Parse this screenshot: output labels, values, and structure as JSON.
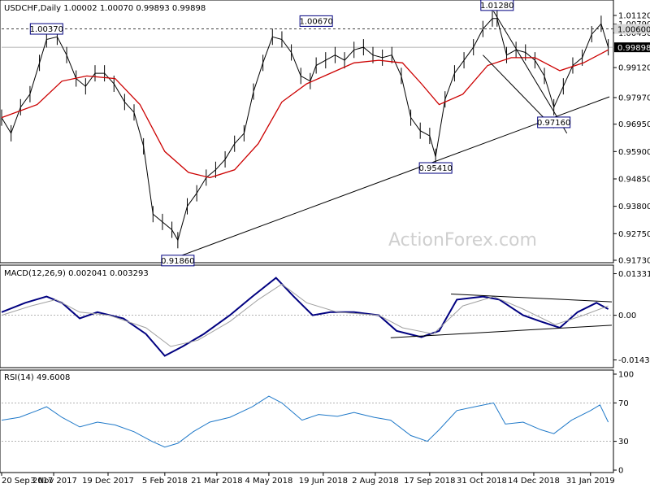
{
  "chart_data": [
    {
      "type": "line",
      "panel": "price",
      "title": "USDCHF,Daily  1.00002 1.00070 0.99893 0.99898",
      "watermark": "ActionForex.com",
      "ylim": [
        0.9173,
        1.014
      ],
      "y_ticks": [
        "1.01120",
        "1.00790",
        "1.00450",
        "0.99120",
        "0.97970",
        "0.96950",
        "0.95900",
        "0.94850",
        "0.93800",
        "0.92750",
        "0.91730"
      ],
      "y_tick_values": [
        1.0112,
        1.0079,
        1.0045,
        0.9912,
        0.9797,
        0.9695,
        0.959,
        0.9485,
        0.938,
        0.9275,
        0.9173
      ],
      "current_price_label": "0.99898",
      "current_price": 0.99898,
      "dashed_level_label": "1.00600",
      "dashed_level": 1.006,
      "x_labels": [
        "20 Sep 2017",
        "3 Nov 2017",
        "19 Dec 2017",
        "5 Feb 2018",
        "21 Mar 2018",
        "4 May 2018",
        "19 Jun 2018",
        "2 Aug 2018",
        "17 Sep 2018",
        "31 Oct 2018",
        "14 Dec 2018",
        "31 Jan 2019"
      ],
      "annotations": [
        {
          "text": "1.00370",
          "x": "28 Oct 2017",
          "value": 1.0037
        },
        {
          "text": "0.91860",
          "x": "16 Feb 2018",
          "value": 0.9186
        },
        {
          "text": "1.00670",
          "x": "13 Jun 2018",
          "value": 1.0067
        },
        {
          "text": "0.95410",
          "x": "22 Sep 2018",
          "value": 0.9541
        },
        {
          "text": "1.01280",
          "x": "13 Nov 2018",
          "value": 1.0128
        },
        {
          "text": "0.97160",
          "x": "31 Dec 2018",
          "value": 0.9716
        }
      ],
      "series": [
        {
          "color": "#000000",
          "style": "bars",
          "points": [
            [
              "20 Sep 2017",
              0.972
            ],
            [
              "28 Sep 2017",
              0.966
            ],
            [
              "6 Oct 2017",
              0.976
            ],
            [
              "14 Oct 2017",
              0.981
            ],
            [
              "22 Oct 2017",
              0.993
            ],
            [
              "28 Oct 2017",
              1.002
            ],
            [
              "6 Nov 2017",
              1.003
            ],
            [
              "14 Nov 2017",
              0.996
            ],
            [
              "22 Nov 2017",
              0.987
            ],
            [
              "30 Nov 2017",
              0.984
            ],
            [
              "8 Dec 2017",
              0.989
            ],
            [
              "16 Dec 2017",
              0.989
            ],
            [
              "24 Dec 2017",
              0.985
            ],
            [
              "2 Jan 2018",
              0.978
            ],
            [
              "10 Jan 2018",
              0.974
            ],
            [
              "18 Jan 2018",
              0.961
            ],
            [
              "26 Jan 2018",
              0.935
            ],
            [
              "3 Feb 2018",
              0.932
            ],
            [
              "11 Feb 2018",
              0.929
            ],
            [
              "16 Feb 2018",
              0.925
            ],
            [
              "24 Feb 2018",
              0.938
            ],
            [
              "4 Mar 2018",
              0.943
            ],
            [
              "12 Mar 2018",
              0.949
            ],
            [
              "20 Mar 2018",
              0.952
            ],
            [
              "28 Mar 2018",
              0.956
            ],
            [
              "5 Apr 2018",
              0.962
            ],
            [
              "13 Apr 2018",
              0.966
            ],
            [
              "21 Apr 2018",
              0.982
            ],
            [
              "29 Apr 2018",
              0.993
            ],
            [
              "7 May 2018",
              1.003
            ],
            [
              "15 May 2018",
              1.002
            ],
            [
              "23 May 2018",
              0.997
            ],
            [
              "31 May 2018",
              0.988
            ],
            [
              "8 Jun 2018",
              0.986
            ],
            [
              "13 Jun 2018",
              0.992
            ],
            [
              "21 Jun 2018",
              0.994
            ],
            [
              "29 Jun 2018",
              0.996
            ],
            [
              "7 Jul 2018",
              0.994
            ],
            [
              "15 Jul 2018",
              0.998
            ],
            [
              "23 Jul 2018",
              0.999
            ],
            [
              "31 Jul 2018",
              0.996
            ],
            [
              "8 Aug 2018",
              0.995
            ],
            [
              "16 Aug 2018",
              0.996
            ],
            [
              "24 Aug 2018",
              0.988
            ],
            [
              "1 Sep 2018",
              0.972
            ],
            [
              "9 Sep 2018",
              0.967
            ],
            [
              "17 Sep 2018",
              0.965
            ],
            [
              "22 Sep 2018",
              0.957
            ],
            [
              "30 Sep 2018",
              0.979
            ],
            [
              "8 Oct 2018",
              0.989
            ],
            [
              "16 Oct 2018",
              0.994
            ],
            [
              "24 Oct 2018",
              0.999
            ],
            [
              "1 Nov 2018",
              1.006
            ],
            [
              "9 Nov 2018",
              1.01
            ],
            [
              "13 Nov 2018",
              1.01
            ],
            [
              "21 Nov 2018",
              0.996
            ],
            [
              "29 Nov 2018",
              0.998
            ],
            [
              "7 Dec 2018",
              0.997
            ],
            [
              "15 Dec 2018",
              0.994
            ],
            [
              "23 Dec 2018",
              0.988
            ],
            [
              "31 Dec 2018",
              0.976
            ],
            [
              "8 Jan 2019",
              0.984
            ],
            [
              "16 Jan 2019",
              0.992
            ],
            [
              "24 Jan 2019",
              0.995
            ],
            [
              "1 Feb 2019",
              1.004
            ],
            [
              "9 Feb 2019",
              1.008
            ],
            [
              "15 Feb 2019",
              0.999
            ]
          ]
        },
        {
          "color": "#cc0000",
          "style": "line",
          "points": [
            [
              "20 Sep 2017",
              0.972
            ],
            [
              "20 Oct 2017",
              0.977
            ],
            [
              "10 Nov 2017",
              0.986
            ],
            [
              "1 Dec 2017",
              0.988
            ],
            [
              "25 Dec 2017",
              0.987
            ],
            [
              "15 Jan 2018",
              0.977
            ],
            [
              "5 Feb 2018",
              0.959
            ],
            [
              "25 Feb 2018",
              0.951
            ],
            [
              "15 Mar 2018",
              0.949
            ],
            [
              "5 Apr 2018",
              0.952
            ],
            [
              "25 Apr 2018",
              0.962
            ],
            [
              "15 May 2018",
              0.978
            ],
            [
              "5 Jun 2018",
              0.985
            ],
            [
              "25 Jun 2018",
              0.989
            ],
            [
              "15 Jul 2018",
              0.993
            ],
            [
              "5 Aug 2018",
              0.994
            ],
            [
              "25 Aug 2018",
              0.993
            ],
            [
              "10 Sep 2018",
              0.985
            ],
            [
              "25 Sep 2018",
              0.977
            ],
            [
              "15 Oct 2018",
              0.981
            ],
            [
              "5 Nov 2018",
              0.992
            ],
            [
              "25 Nov 2018",
              0.995
            ],
            [
              "15 Dec 2018",
              0.995
            ],
            [
              "5 Jan 2019",
              0.99
            ],
            [
              "25 Jan 2019",
              0.993
            ],
            [
              "15 Feb 2019",
              0.998
            ]
          ]
        }
      ],
      "trendlines": [
        {
          "from": [
            "16 Feb 2018",
            0.9186
          ],
          "to": [
            "16 Feb 2019",
            0.98
          ],
          "color": "#000000"
        },
        {
          "from": [
            "10 Nov 2018",
            1.0128
          ],
          "to": [
            "11 Jan 2019",
            0.966
          ],
          "color": "#000000"
        },
        {
          "from": [
            "1 Nov 2018",
            0.996
          ],
          "to": [
            "31 Dec 2018",
            0.968
          ],
          "color": "#000000"
        }
      ]
    },
    {
      "type": "line",
      "panel": "macd",
      "title": "MACD(12,26,9) 0.002041 0.003293",
      "ylim": [
        -0.016,
        0.0145
      ],
      "y_ticks": [
        "0.013319",
        "0.00",
        "-0.014323"
      ],
      "y_tick_values": [
        0.013319,
        0.0,
        -0.014323
      ],
      "series": [
        {
          "name": "MACD",
          "color": "#000080",
          "points": [
            [
              "20 Sep 2017",
              0.001
            ],
            [
              "10 Oct 2017",
              0.004
            ],
            [
              "28 Oct 2017",
              0.006
            ],
            [
              "10 Nov 2017",
              0.004
            ],
            [
              "25 Nov 2017",
              -0.001
            ],
            [
              "10 Dec 2017",
              0.001
            ],
            [
              "1 Jan 2018",
              -0.001
            ],
            [
              "20 Jan 2018",
              -0.006
            ],
            [
              "5 Feb 2018",
              -0.013
            ],
            [
              "20 Feb 2018",
              -0.01
            ],
            [
              "10 Mar 2018",
              -0.006
            ],
            [
              "1 Apr 2018",
              0.0
            ],
            [
              "20 Apr 2018",
              0.006
            ],
            [
              "10 May 2018",
              0.012
            ],
            [
              "25 May 2018",
              0.006
            ],
            [
              "10 Jun 2018",
              0.0
            ],
            [
              "25 Jun 2018",
              0.001
            ],
            [
              "15 Jul 2018",
              0.001
            ],
            [
              "5 Aug 2018",
              0.0
            ],
            [
              "20 Aug 2018",
              -0.005
            ],
            [
              "10 Sep 2018",
              -0.007
            ],
            [
              "25 Sep 2018",
              -0.005
            ],
            [
              "10 Oct 2018",
              0.005
            ],
            [
              "1 Nov 2018",
              0.006
            ],
            [
              "15 Nov 2018",
              0.005
            ],
            [
              "5 Dec 2018",
              0.0
            ],
            [
              "20 Dec 2018",
              -0.002
            ],
            [
              "5 Jan 2019",
              -0.004
            ],
            [
              "20 Jan 2019",
              0.001
            ],
            [
              "5 Feb 2019",
              0.004
            ],
            [
              "15 Feb 2019",
              0.002
            ]
          ]
        },
        {
          "name": "Signal",
          "color": "#a0a0a0",
          "points": [
            [
              "20 Sep 2017",
              0.0
            ],
            [
              "15 Oct 2017",
              0.003
            ],
            [
              "5 Nov 2017",
              0.005
            ],
            [
              "25 Nov 2017",
              0.001
            ],
            [
              "20 Dec 2017",
              0.0
            ],
            [
              "20 Jan 2018",
              -0.004
            ],
            [
              "10 Feb 2018",
              -0.01
            ],
            [
              "5 Mar 2018",
              -0.008
            ],
            [
              "1 Apr 2018",
              -0.002
            ],
            [
              "25 Apr 2018",
              0.005
            ],
            [
              "15 May 2018",
              0.01
            ],
            [
              "5 Jun 2018",
              0.004
            ],
            [
              "1 Jul 2018",
              0.001
            ],
            [
              "5 Aug 2018",
              0.0
            ],
            [
              "25 Aug 2018",
              -0.004
            ],
            [
              "20 Sep 2018",
              -0.006
            ],
            [
              "15 Oct 2018",
              0.003
            ],
            [
              "10 Nov 2018",
              0.006
            ],
            [
              "5 Dec 2018",
              0.002
            ],
            [
              "1 Jan 2019",
              -0.003
            ],
            [
              "25 Jan 2019",
              0.0
            ],
            [
              "15 Feb 2019",
              0.003
            ]
          ]
        }
      ],
      "trendlines": [
        {
          "from": [
            "15 Aug 2018",
            -0.0072
          ],
          "to": [
            "18 Feb 2019",
            -0.0032
          ],
          "color": "#000000"
        },
        {
          "from": [
            "5 Oct 2018",
            0.0068
          ],
          "to": [
            "18 Feb 2019",
            0.0043
          ],
          "color": "#000000"
        }
      ]
    },
    {
      "type": "line",
      "panel": "rsi",
      "title": "RSI(14) 49.6008",
      "ylim": [
        0,
        100
      ],
      "y_ticks": [
        "100",
        "70",
        "30",
        "0"
      ],
      "y_tick_values": [
        100,
        70,
        30,
        0
      ],
      "levels": [
        70,
        30
      ],
      "series": [
        {
          "name": "RSI(14)",
          "color": "#1e78c8",
          "points": [
            [
              "20 Sep 2017",
              52
            ],
            [
              "5 Oct 2017",
              55
            ],
            [
              "20 Oct 2017",
              62
            ],
            [
              "28 Oct 2017",
              66
            ],
            [
              "10 Nov 2017",
              55
            ],
            [
              "25 Nov 2017",
              45
            ],
            [
              "10 Dec 2017",
              50
            ],
            [
              "25 Dec 2017",
              47
            ],
            [
              "10 Jan 2018",
              40
            ],
            [
              "25 Jan 2018",
              30
            ],
            [
              "5 Feb 2018",
              24
            ],
            [
              "16 Feb 2018",
              28
            ],
            [
              "1 Mar 2018",
              40
            ],
            [
              "15 Mar 2018",
              50
            ],
            [
              "1 Apr 2018",
              55
            ],
            [
              "20 Apr 2018",
              66
            ],
            [
              "4 May 2018",
              77
            ],
            [
              "15 May 2018",
              70
            ],
            [
              "1 Jun 2018",
              52
            ],
            [
              "15 Jun 2018",
              58
            ],
            [
              "1 Jul 2018",
              56
            ],
            [
              "15 Jul 2018",
              60
            ],
            [
              "1 Aug 2018",
              55
            ],
            [
              "15 Aug 2018",
              52
            ],
            [
              "1 Sep 2018",
              36
            ],
            [
              "15 Sep 2018",
              30
            ],
            [
              "25 Sep 2018",
              42
            ],
            [
              "10 Oct 2018",
              62
            ],
            [
              "25 Oct 2018",
              66
            ],
            [
              "10 Nov 2018",
              70
            ],
            [
              "20 Nov 2018",
              48
            ],
            [
              "5 Dec 2018",
              50
            ],
            [
              "20 Dec 2018",
              42
            ],
            [
              "31 Dec 2018",
              38
            ],
            [
              "15 Jan 2019",
              52
            ],
            [
              "31 Jan 2019",
              62
            ],
            [
              "8 Feb 2019",
              68
            ],
            [
              "15 Feb 2019",
              50
            ]
          ]
        }
      ]
    }
  ]
}
